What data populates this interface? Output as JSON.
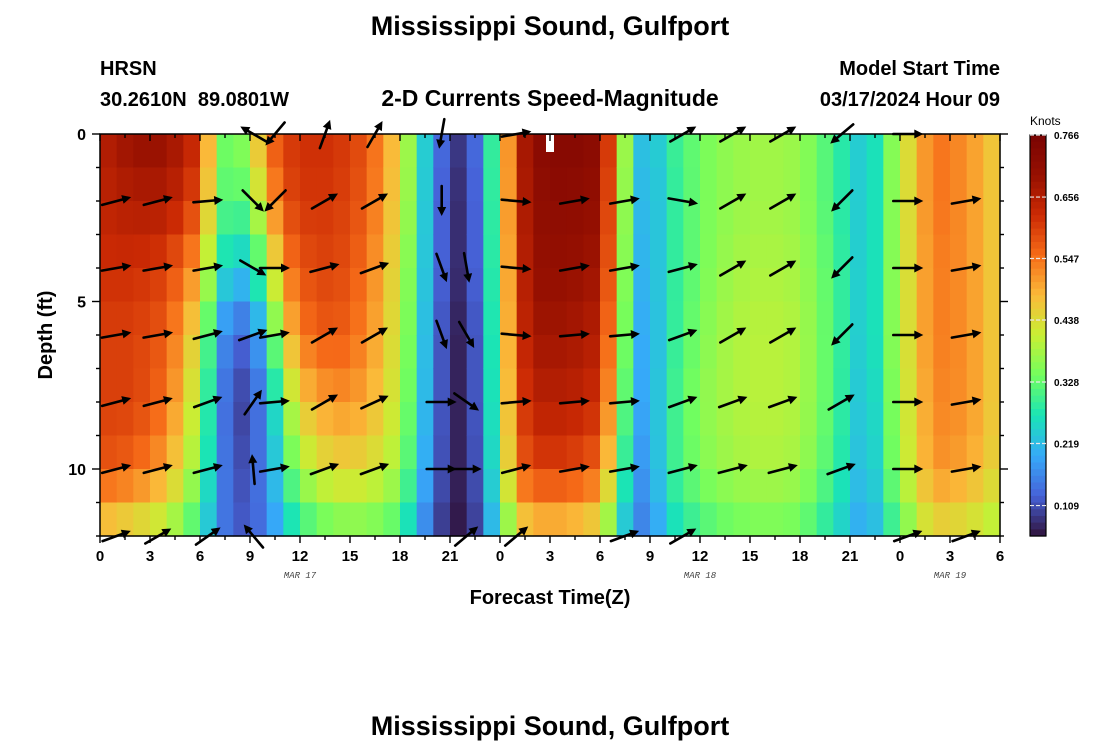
{
  "chart_data": {
    "type": "heatmap",
    "title": "Mississippi Sound, Gulfport",
    "subtitle": "2-D Currents Speed-Magnitude",
    "footer_title": "Mississippi Sound, Gulfport",
    "station_id": "HRSN",
    "station_coords": "30.2610N  89.0801W",
    "model_start_label": "Model Start Time",
    "model_start_value": "03/17/2024 Hour 09",
    "xlabel": "Forecast Time(Z)",
    "ylabel": "Depth (ft)",
    "x_range_hours": [
      0,
      54
    ],
    "ylim": [
      0,
      12
    ],
    "x_ticks": [
      {
        "hour": 0,
        "label": "0"
      },
      {
        "hour": 3,
        "label": "3"
      },
      {
        "hour": 6,
        "label": "6"
      },
      {
        "hour": 9,
        "label": "9"
      },
      {
        "hour": 12,
        "label": "12"
      },
      {
        "hour": 15,
        "label": "15"
      },
      {
        "hour": 18,
        "label": "18"
      },
      {
        "hour": 21,
        "label": "21"
      },
      {
        "hour": 24,
        "label": "0"
      },
      {
        "hour": 27,
        "label": "3"
      },
      {
        "hour": 30,
        "label": "6"
      },
      {
        "hour": 33,
        "label": "9"
      },
      {
        "hour": 36,
        "label": "12"
      },
      {
        "hour": 39,
        "label": "15"
      },
      {
        "hour": 42,
        "label": "18"
      },
      {
        "hour": 45,
        "label": "21"
      },
      {
        "hour": 48,
        "label": "0"
      },
      {
        "hour": 51,
        "label": "3"
      },
      {
        "hour": 54,
        "label": "6"
      }
    ],
    "date_labels": [
      {
        "hour": 12,
        "label": "MAR 17"
      },
      {
        "hour": 36,
        "label": "MAR 18"
      },
      {
        "hour": 51,
        "label": "MAR 19"
      }
    ],
    "y_ticks": [
      {
        "depth": 0,
        "label": "0"
      },
      {
        "depth": 5,
        "label": "5"
      },
      {
        "depth": 10,
        "label": "10"
      }
    ],
    "colorbar": {
      "title": "Knots",
      "min": 0.055,
      "max": 0.766,
      "ticks": [
        "0.109",
        "0.219",
        "0.328",
        "0.438",
        "0.547",
        "0.656",
        "0.766"
      ]
    },
    "speed_profile": {
      "hours": [
        0,
        2,
        4,
        6,
        7,
        8,
        9,
        10,
        11,
        12,
        14,
        16,
        18,
        19,
        20,
        21,
        22,
        23,
        24,
        25,
        26,
        28,
        30,
        31,
        32,
        33,
        34,
        36,
        38,
        40,
        42,
        44,
        46,
        48,
        50,
        52,
        54
      ],
      "depths": [
        0,
        2,
        4,
        6,
        8,
        10,
        12
      ],
      "values": [
        [
          0.65,
          0.7,
          0.7,
          0.62,
          0.36,
          0.32,
          0.4,
          0.55,
          0.6,
          0.62,
          0.62,
          0.58,
          0.45,
          0.3,
          0.18,
          0.09,
          0.09,
          0.18,
          0.4,
          0.63,
          0.72,
          0.74,
          0.72,
          0.5,
          0.25,
          0.2,
          0.28,
          0.34,
          0.37,
          0.38,
          0.37,
          0.3,
          0.22,
          0.4,
          0.55,
          0.52,
          0.45
        ],
        [
          0.64,
          0.66,
          0.66,
          0.58,
          0.34,
          0.3,
          0.34,
          0.48,
          0.58,
          0.61,
          0.61,
          0.57,
          0.44,
          0.3,
          0.17,
          0.08,
          0.08,
          0.17,
          0.4,
          0.62,
          0.71,
          0.72,
          0.7,
          0.49,
          0.24,
          0.19,
          0.27,
          0.34,
          0.37,
          0.38,
          0.37,
          0.3,
          0.22,
          0.4,
          0.55,
          0.52,
          0.45
        ],
        [
          0.62,
          0.62,
          0.6,
          0.5,
          0.28,
          0.23,
          0.24,
          0.36,
          0.52,
          0.58,
          0.6,
          0.55,
          0.42,
          0.29,
          0.17,
          0.08,
          0.08,
          0.17,
          0.39,
          0.61,
          0.7,
          0.7,
          0.68,
          0.48,
          0.23,
          0.19,
          0.27,
          0.34,
          0.38,
          0.39,
          0.38,
          0.31,
          0.22,
          0.4,
          0.54,
          0.52,
          0.45
        ],
        [
          0.6,
          0.6,
          0.57,
          0.42,
          0.2,
          0.13,
          0.13,
          0.24,
          0.44,
          0.54,
          0.58,
          0.53,
          0.41,
          0.28,
          0.16,
          0.07,
          0.07,
          0.16,
          0.38,
          0.6,
          0.68,
          0.68,
          0.65,
          0.46,
          0.22,
          0.18,
          0.27,
          0.35,
          0.39,
          0.4,
          0.39,
          0.31,
          0.22,
          0.4,
          0.54,
          0.52,
          0.45
        ],
        [
          0.6,
          0.6,
          0.55,
          0.38,
          0.18,
          0.1,
          0.1,
          0.18,
          0.34,
          0.46,
          0.52,
          0.5,
          0.4,
          0.27,
          0.16,
          0.07,
          0.07,
          0.16,
          0.37,
          0.58,
          0.65,
          0.65,
          0.62,
          0.43,
          0.21,
          0.18,
          0.28,
          0.36,
          0.39,
          0.4,
          0.39,
          0.31,
          0.21,
          0.39,
          0.53,
          0.52,
          0.45
        ],
        [
          0.58,
          0.56,
          0.5,
          0.35,
          0.18,
          0.11,
          0.11,
          0.17,
          0.28,
          0.38,
          0.45,
          0.44,
          0.38,
          0.25,
          0.15,
          0.07,
          0.07,
          0.15,
          0.35,
          0.55,
          0.6,
          0.6,
          0.56,
          0.38,
          0.19,
          0.17,
          0.28,
          0.35,
          0.38,
          0.39,
          0.38,
          0.3,
          0.2,
          0.38,
          0.52,
          0.5,
          0.44
        ],
        [
          0.45,
          0.42,
          0.38,
          0.28,
          0.17,
          0.12,
          0.12,
          0.15,
          0.22,
          0.28,
          0.33,
          0.34,
          0.3,
          0.2,
          0.12,
          0.06,
          0.06,
          0.13,
          0.28,
          0.42,
          0.46,
          0.46,
          0.42,
          0.28,
          0.16,
          0.15,
          0.24,
          0.3,
          0.33,
          0.34,
          0.33,
          0.26,
          0.18,
          0.32,
          0.44,
          0.42,
          0.38
        ]
      ]
    },
    "current_vectors": {
      "hours": [
        1,
        3.5,
        6.5,
        9.2,
        10.5,
        13.5,
        16.5,
        20.5,
        22,
        25,
        28.5,
        31.5,
        35,
        38,
        41,
        44.5,
        48.5,
        52
      ],
      "depths": [
        0,
        2,
        4,
        6,
        8,
        10,
        12
      ],
      "directions_deg": [
        [
          0,
          0,
          0,
          150,
          230,
          70,
          60,
          260,
          0,
          10,
          0,
          0,
          30,
          30,
          30,
          220,
          0,
          0
        ],
        [
          15,
          15,
          5,
          315,
          225,
          30,
          30,
          270,
          0,
          355,
          10,
          10,
          350,
          30,
          30,
          225,
          0,
          10
        ],
        [
          10,
          10,
          10,
          330,
          0,
          15,
          20,
          290,
          280,
          355,
          10,
          10,
          15,
          30,
          30,
          225,
          0,
          10
        ],
        [
          10,
          10,
          15,
          20,
          10,
          30,
          30,
          290,
          300,
          355,
          5,
          5,
          20,
          30,
          30,
          225,
          0,
          10
        ],
        [
          15,
          15,
          20,
          55,
          5,
          30,
          25,
          0,
          325,
          5,
          5,
          5,
          20,
          20,
          20,
          30,
          0,
          10
        ],
        [
          15,
          15,
          15,
          95,
          10,
          20,
          20,
          0,
          0,
          15,
          10,
          10,
          15,
          15,
          15,
          20,
          0,
          10
        ],
        [
          20,
          30,
          35,
          130,
          0,
          0,
          0,
          0,
          40,
          40,
          0,
          20,
          30,
          0,
          0,
          0,
          20,
          20
        ]
      ],
      "present": [
        [
          0,
          0,
          0,
          1,
          1,
          1,
          1,
          1,
          0,
          1,
          0,
          0,
          1,
          1,
          1,
          1,
          1,
          0
        ],
        [
          1,
          1,
          1,
          1,
          1,
          1,
          1,
          1,
          0,
          1,
          1,
          1,
          1,
          1,
          1,
          1,
          1,
          1
        ],
        [
          1,
          1,
          1,
          1,
          1,
          1,
          1,
          1,
          1,
          1,
          1,
          1,
          1,
          1,
          1,
          1,
          1,
          1
        ],
        [
          1,
          1,
          1,
          1,
          1,
          1,
          1,
          1,
          1,
          1,
          1,
          1,
          1,
          1,
          1,
          1,
          1,
          1
        ],
        [
          1,
          1,
          1,
          1,
          1,
          1,
          1,
          1,
          1,
          1,
          1,
          1,
          1,
          1,
          1,
          1,
          1,
          1
        ],
        [
          1,
          1,
          1,
          1,
          1,
          1,
          1,
          1,
          1,
          1,
          1,
          1,
          1,
          1,
          1,
          1,
          1,
          1
        ],
        [
          1,
          1,
          1,
          1,
          0,
          0,
          0,
          0,
          1,
          1,
          0,
          1,
          1,
          0,
          0,
          0,
          1,
          1
        ]
      ]
    }
  }
}
